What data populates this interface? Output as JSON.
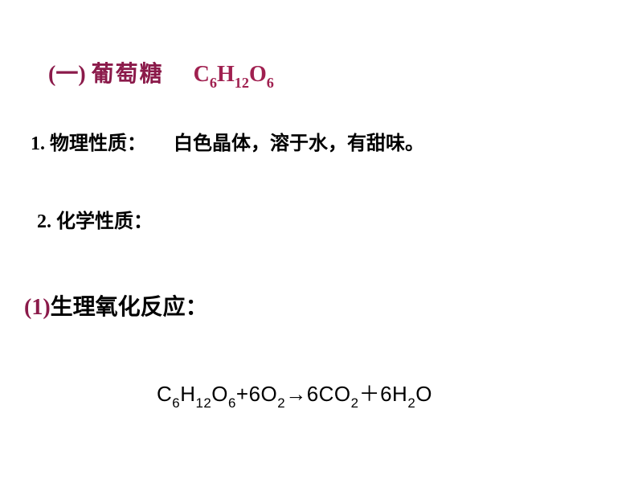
{
  "colors": {
    "heading": "#8b1a4a",
    "formula_head": "#a02050",
    "body": "#000000",
    "subheading": "#8b1a4a",
    "background": "#ffffff"
  },
  "fonts": {
    "heading_size_pt": 28,
    "body_size_pt": 24,
    "equation_size_pt": 26
  },
  "heading": {
    "prefix": "(一)",
    "name": "葡萄糖",
    "formula_parts": {
      "c": "C",
      "c_sub": "6",
      "h": "H",
      "h_sub": "12",
      "o": "O",
      "o_sub": "6"
    }
  },
  "prop1": {
    "label": "1. 物理性质：",
    "text": "白色晶体，溶于水，有甜味。"
  },
  "prop2": {
    "label": "2. 化学性质："
  },
  "sub1": {
    "num": "(1)",
    "text": "生理氧化反应："
  },
  "equation": {
    "lhs": {
      "c": "C",
      "c_sub": "6",
      "h": "H",
      "h_sub": "12",
      "o": "O",
      "o_sub": "6",
      "plus": "+6O",
      "o2_sub": "2"
    },
    "arrow": "→",
    "rhs": {
      "co2_coeff": "6CO",
      "co2_sub": "2",
      "plus": "＋",
      "h2o_coeff": "6H",
      "h2o_sub": "2",
      "h2o_o": "O"
    }
  }
}
